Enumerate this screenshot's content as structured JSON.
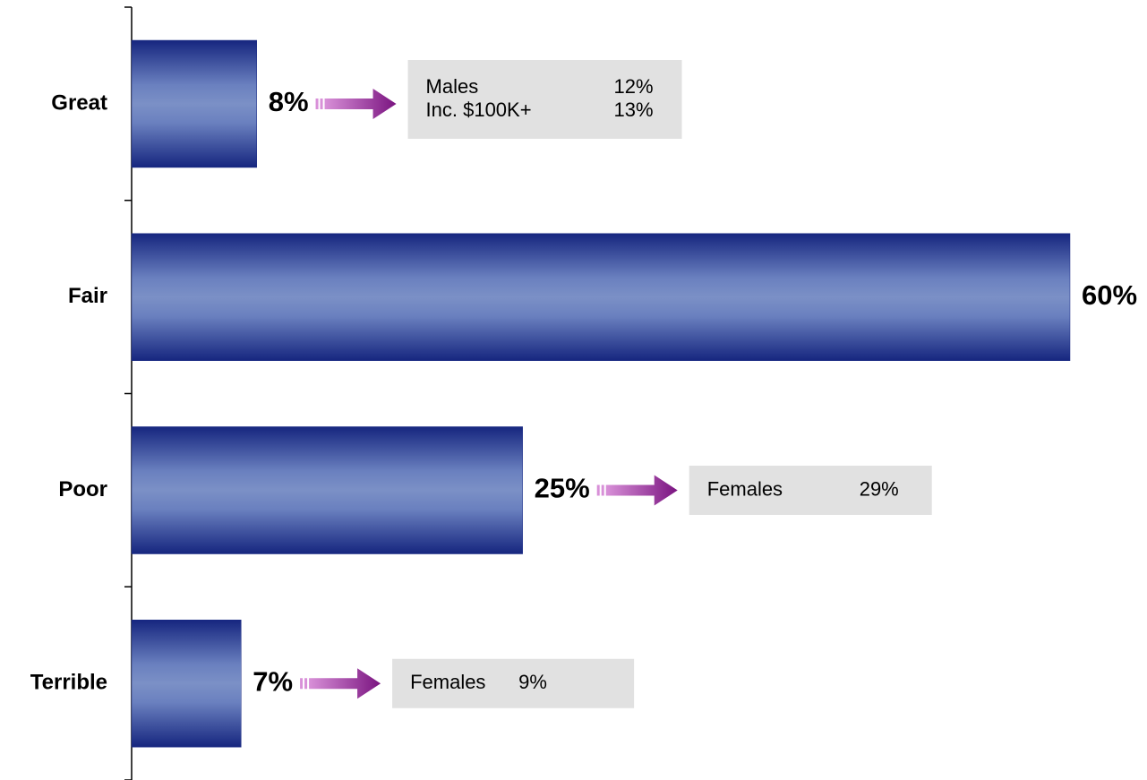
{
  "chart_data": {
    "type": "bar",
    "orientation": "horizontal",
    "categories": [
      "Great",
      "Fair",
      "Poor",
      "Terrible"
    ],
    "values": [
      8,
      60,
      25,
      7
    ],
    "value_labels": [
      "8%",
      "60%",
      "25%",
      "7%"
    ],
    "color": "#1a2a84",
    "annotations": [
      {
        "category": "Great",
        "rows": [
          [
            "Males",
            "12%"
          ],
          [
            "Inc. $100K+",
            "13%"
          ]
        ]
      },
      {
        "category": "Poor",
        "rows": [
          [
            "Females",
            "29%"
          ]
        ]
      },
      {
        "category": "Terrible",
        "rows": [
          [
            "Females",
            "9%"
          ]
        ]
      }
    ]
  }
}
